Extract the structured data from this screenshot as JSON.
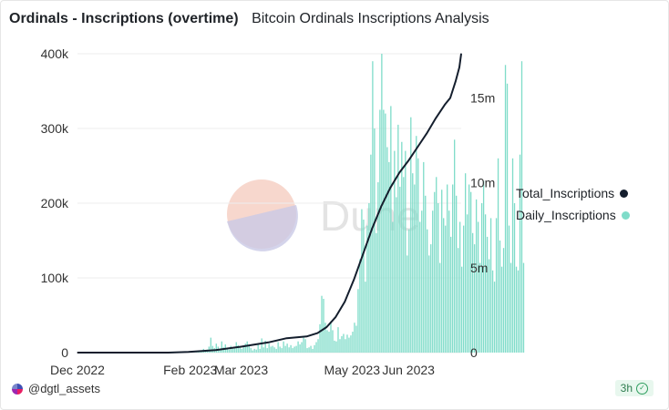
{
  "header": {
    "title": "Ordinals - Inscriptions (overtime)",
    "subtitle": "Bitcoin Ordinals Inscriptions Analysis"
  },
  "watermark": {
    "text": "Dune"
  },
  "footer": {
    "author": "@dgtl_assets",
    "freshness": "3h"
  },
  "colors": {
    "bars": "#7fdcc9",
    "line": "#141e2d",
    "grid": "#eeeeee",
    "axis_text": "#333333"
  },
  "chart_data": {
    "type": "bar+line",
    "x_ticks": [
      "Dec 2022",
      "Feb 2023",
      "Mar 2023",
      "May 2023",
      "Jun 2023"
    ],
    "x_range": [
      "2022-12-01",
      "2023-06-30"
    ],
    "y_left": {
      "ticks": [
        "0",
        "100k",
        "200k",
        "300k",
        "400k"
      ],
      "range": [
        0,
        400000
      ]
    },
    "y_right": {
      "ticks": [
        "0",
        "5m",
        "10m",
        "15m"
      ],
      "range": [
        0,
        17600000
      ]
    },
    "legend": {
      "placement": "right",
      "entries": [
        "Total_Inscriptions",
        "Daily_Inscriptions"
      ]
    },
    "series": [
      {
        "name": "Daily_Inscriptions",
        "axis": "left",
        "type": "bar",
        "values": [
          0,
          0,
          0,
          0,
          0,
          0,
          0,
          0,
          0,
          0,
          0,
          0,
          0,
          0,
          0,
          0,
          0,
          0,
          0,
          0,
          0,
          0,
          0,
          0,
          0,
          0,
          0,
          0,
          0,
          0,
          0,
          0,
          0,
          0,
          0,
          0,
          0,
          0,
          0,
          0,
          0,
          0,
          0,
          0,
          0,
          0,
          0,
          0,
          0,
          0,
          0,
          0,
          0,
          0,
          0,
          0,
          0,
          0,
          0,
          0,
          0,
          0,
          0,
          0,
          200,
          400,
          800,
          1200,
          2000,
          5000,
          3000,
          4000,
          8000,
          20000,
          9000,
          6000,
          12000,
          8000,
          5000,
          15000,
          7000,
          11000,
          6000,
          4000,
          9000,
          6000,
          8000,
          14000,
          10000,
          7000,
          5000,
          9000,
          12000,
          15000,
          9000,
          6000,
          3000,
          5000,
          4000,
          11000,
          5000,
          19000,
          7000,
          16000,
          6000,
          12000,
          8000,
          9000,
          7000,
          5000,
          14000,
          8000,
          6000,
          15000,
          9000,
          12000,
          7000,
          10000,
          6000,
          8000,
          9000,
          15000,
          11000,
          14000,
          20000,
          18000,
          6000,
          7000,
          9000,
          5000,
          10000,
          14000,
          18000,
          38000,
          76000,
          72000,
          40000,
          30000,
          28000,
          42000,
          30000,
          16000,
          15000,
          34000,
          18000,
          22000,
          25000,
          18000,
          24000,
          20000,
          23000,
          28000,
          40000,
          36000,
          85000,
          125000,
          192000,
          178000,
          95000,
          170000,
          200000,
          265000,
          390000,
          300000,
          160000,
          228000,
          325000,
          400000,
          325000,
          320000,
          275000,
          255000,
          330000,
          175000,
          270000,
          208000,
          305000,
          222000,
          282000,
          235000,
          270000,
          130000,
          165000,
          315000,
          240000,
          225000,
          290000,
          260000,
          175000,
          190000,
          255000,
          210000,
          165000,
          130000,
          145000,
          190000,
          215000,
          235000,
          200000,
          120000,
          218000,
          180000,
          170000,
          225000,
          190000,
          155000,
          225000,
          285000,
          210000,
          140000,
          175000,
          115000,
          170000,
          240000,
          185000,
          225000,
          215000,
          160000,
          145000,
          205000,
          175000,
          120000,
          200000,
          230000,
          185000,
          155000,
          125000,
          180000,
          110000,
          95000,
          180000,
          260000,
          150000,
          115000,
          140000,
          385000,
          360000,
          170000,
          120000,
          260000,
          200000,
          115000,
          110000,
          265000,
          390000,
          120000
        ]
      },
      {
        "name": "Total_Inscriptions",
        "axis": "right",
        "type": "line",
        "points": [
          [
            "2022-12-01",
            0
          ],
          [
            "2023-01-20",
            0
          ],
          [
            "2023-01-31",
            40000
          ],
          [
            "2023-02-15",
            150000
          ],
          [
            "2023-03-01",
            350000
          ],
          [
            "2023-03-16",
            600000
          ],
          [
            "2023-03-26",
            850000
          ],
          [
            "2023-04-06",
            950000
          ],
          [
            "2023-04-12",
            1150000
          ],
          [
            "2023-04-17",
            1500000
          ],
          [
            "2023-04-22",
            2100000
          ],
          [
            "2023-04-27",
            3000000
          ],
          [
            "2023-05-02",
            4300000
          ],
          [
            "2023-05-07",
            5800000
          ],
          [
            "2023-05-12",
            7300000
          ],
          [
            "2023-05-17",
            8600000
          ],
          [
            "2023-05-22",
            9700000
          ],
          [
            "2023-05-27",
            10600000
          ],
          [
            "2023-06-01",
            11300000
          ],
          [
            "2023-06-06",
            12100000
          ],
          [
            "2023-06-11",
            12900000
          ],
          [
            "2023-06-16",
            13800000
          ],
          [
            "2023-06-21",
            14600000
          ],
          [
            "2023-06-24",
            15000000
          ],
          [
            "2023-06-27",
            16000000
          ],
          [
            "2023-06-29",
            16800000
          ],
          [
            "2023-06-30",
            17600000
          ]
        ]
      }
    ]
  }
}
